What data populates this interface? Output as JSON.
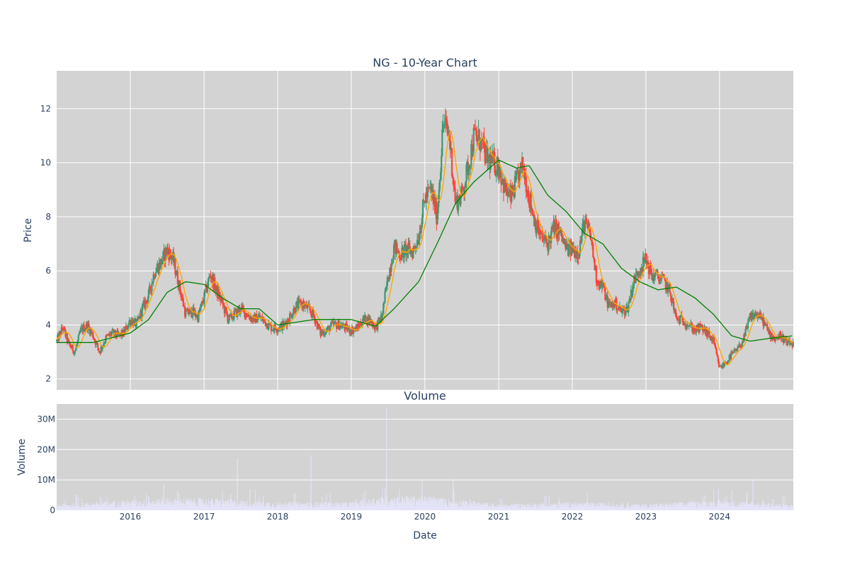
{
  "chart_data": [
    {
      "type": "candlestick",
      "title": "NG - 10-Year Chart",
      "ylabel": "Price",
      "xlabel": "",
      "ylim": [
        1.6,
        13.4
      ],
      "xlim": [
        "2015-01-01",
        "2025-01-01"
      ],
      "y_ticks": [
        2,
        4,
        6,
        8,
        10,
        12
      ],
      "x_ticks": [
        {
          "date": "2016-01-01",
          "label": "2016"
        },
        {
          "date": "2017-01-01",
          "label": "2017"
        },
        {
          "date": "2018-01-01",
          "label": "2018"
        },
        {
          "date": "2019-01-01",
          "label": "2019"
        },
        {
          "date": "2020-01-01",
          "label": "2020"
        },
        {
          "date": "2021-01-01",
          "label": "2021"
        },
        {
          "date": "2022-01-01",
          "label": "2022"
        },
        {
          "date": "2023-01-01",
          "label": "2023"
        },
        {
          "date": "2024-01-01",
          "label": "2024"
        }
      ],
      "grid": true,
      "colors": {
        "up": "#3d9970",
        "down": "#ff4136",
        "ma_short": "#ffa500",
        "ma_long": "#008000",
        "plot_bg": "#d3d3d3"
      },
      "price_path": [
        [
          "2015-01-01",
          3.4
        ],
        [
          "2015-02-01",
          3.9
        ],
        [
          "2015-03-01",
          3.3
        ],
        [
          "2015-04-01",
          3.0
        ],
        [
          "2015-05-01",
          3.8
        ],
        [
          "2015-06-01",
          4.0
        ],
        [
          "2015-07-01",
          3.6
        ],
        [
          "2015-08-01",
          3.0
        ],
        [
          "2015-09-01",
          3.5
        ],
        [
          "2015-10-01",
          3.7
        ],
        [
          "2015-11-01",
          3.6
        ],
        [
          "2015-12-01",
          3.7
        ],
        [
          "2016-01-01",
          4.2
        ],
        [
          "2016-02-01",
          4.0
        ],
        [
          "2016-03-01",
          4.6
        ],
        [
          "2016-04-01",
          5.1
        ],
        [
          "2016-05-01",
          6.0
        ],
        [
          "2016-06-01",
          6.3
        ],
        [
          "2016-07-01",
          6.8
        ],
        [
          "2016-08-01",
          6.4
        ],
        [
          "2016-09-01",
          5.4
        ],
        [
          "2016-10-01",
          4.4
        ],
        [
          "2016-11-01",
          4.5
        ],
        [
          "2016-12-01",
          4.3
        ],
        [
          "2017-01-01",
          5.0
        ],
        [
          "2017-02-01",
          5.9
        ],
        [
          "2017-03-01",
          5.3
        ],
        [
          "2017-04-01",
          4.8
        ],
        [
          "2017-05-01",
          4.2
        ],
        [
          "2017-06-01",
          4.4
        ],
        [
          "2017-07-01",
          4.6
        ],
        [
          "2017-08-01",
          4.4
        ],
        [
          "2017-09-01",
          4.2
        ],
        [
          "2017-10-01",
          4.3
        ],
        [
          "2017-11-01",
          4.1
        ],
        [
          "2017-12-01",
          3.9
        ],
        [
          "2018-01-01",
          3.9
        ],
        [
          "2018-02-01",
          4.0
        ],
        [
          "2018-03-01",
          4.3
        ],
        [
          "2018-04-01",
          4.7
        ],
        [
          "2018-05-01",
          4.8
        ],
        [
          "2018-06-01",
          4.6
        ],
        [
          "2018-07-01",
          4.3
        ],
        [
          "2018-08-01",
          3.7
        ],
        [
          "2018-09-01",
          3.8
        ],
        [
          "2018-10-01",
          4.0
        ],
        [
          "2018-11-01",
          4.0
        ],
        [
          "2018-12-01",
          3.9
        ],
        [
          "2019-01-01",
          3.8
        ],
        [
          "2019-02-01",
          3.9
        ],
        [
          "2019-03-01",
          4.2
        ],
        [
          "2019-04-01",
          4.2
        ],
        [
          "2019-05-01",
          3.9
        ],
        [
          "2019-06-01",
          4.3
        ],
        [
          "2019-07-01",
          5.7
        ],
        [
          "2019-08-01",
          6.9
        ],
        [
          "2019-09-01",
          6.6
        ],
        [
          "2019-10-01",
          6.8
        ],
        [
          "2019-11-01",
          6.7
        ],
        [
          "2019-12-01",
          7.3
        ],
        [
          "2020-01-01",
          8.7
        ],
        [
          "2020-02-01",
          9.0
        ],
        [
          "2020-03-01",
          8.0
        ],
        [
          "2020-04-01",
          11.5
        ],
        [
          "2020-05-01",
          11.0
        ],
        [
          "2020-06-01",
          8.5
        ],
        [
          "2020-07-01",
          8.8
        ],
        [
          "2020-08-01",
          9.8
        ],
        [
          "2020-09-01",
          11.0
        ],
        [
          "2020-10-01",
          10.8
        ],
        [
          "2020-11-01",
          10.2
        ],
        [
          "2020-12-01",
          10.0
        ],
        [
          "2021-01-01",
          9.9
        ],
        [
          "2021-02-01",
          9.0
        ],
        [
          "2021-03-01",
          8.7
        ],
        [
          "2021-04-01",
          9.3
        ],
        [
          "2021-05-01",
          9.9
        ],
        [
          "2021-06-01",
          8.7
        ],
        [
          "2021-07-01",
          7.8
        ],
        [
          "2021-08-01",
          7.2
        ],
        [
          "2021-09-01",
          7.0
        ],
        [
          "2021-10-01",
          7.6
        ],
        [
          "2021-11-01",
          7.4
        ],
        [
          "2021-12-01",
          6.8
        ],
        [
          "2022-01-01",
          6.8
        ],
        [
          "2022-02-01",
          6.7
        ],
        [
          "2022-03-01",
          7.8
        ],
        [
          "2022-04-01",
          7.3
        ],
        [
          "2022-05-01",
          5.7
        ],
        [
          "2022-06-01",
          5.4
        ],
        [
          "2022-07-01",
          4.7
        ],
        [
          "2022-08-01",
          4.8
        ],
        [
          "2022-09-01",
          4.5
        ],
        [
          "2022-10-01",
          4.6
        ],
        [
          "2022-11-01",
          5.6
        ],
        [
          "2022-12-01",
          6.1
        ],
        [
          "2023-01-01",
          6.4
        ],
        [
          "2023-02-01",
          5.8
        ],
        [
          "2023-03-01",
          5.8
        ],
        [
          "2023-04-01",
          5.6
        ],
        [
          "2023-05-01",
          5.2
        ],
        [
          "2023-06-01",
          4.2
        ],
        [
          "2023-07-01",
          4.2
        ],
        [
          "2023-08-01",
          4.0
        ],
        [
          "2023-09-01",
          3.8
        ],
        [
          "2023-10-01",
          3.9
        ],
        [
          "2023-11-01",
          3.7
        ],
        [
          "2023-12-01",
          3.4
        ],
        [
          "2024-01-01",
          2.4
        ],
        [
          "2024-02-01",
          2.6
        ],
        [
          "2024-03-01",
          2.9
        ],
        [
          "2024-04-01",
          3.1
        ],
        [
          "2024-05-01",
          3.5
        ],
        [
          "2024-06-01",
          4.3
        ],
        [
          "2024-07-01",
          4.4
        ],
        [
          "2024-08-01",
          4.2
        ],
        [
          "2024-09-01",
          3.7
        ],
        [
          "2024-10-01",
          3.5
        ],
        [
          "2024-11-01",
          3.6
        ],
        [
          "2024-12-01",
          3.3
        ]
      ],
      "ma_long": [
        [
          "2015-01-01",
          3.35
        ],
        [
          "2015-07-01",
          3.35
        ],
        [
          "2016-01-01",
          3.7
        ],
        [
          "2016-04-01",
          4.2
        ],
        [
          "2016-07-01",
          5.2
        ],
        [
          "2016-10-01",
          5.6
        ],
        [
          "2017-01-01",
          5.5
        ],
        [
          "2017-04-01",
          5.0
        ],
        [
          "2017-07-01",
          4.6
        ],
        [
          "2017-10-01",
          4.6
        ],
        [
          "2018-01-01",
          4.0
        ],
        [
          "2018-07-01",
          4.2
        ],
        [
          "2019-01-01",
          4.2
        ],
        [
          "2019-05-01",
          3.95
        ],
        [
          "2019-08-01",
          4.6
        ],
        [
          "2019-12-01",
          5.6
        ],
        [
          "2020-03-01",
          7.0
        ],
        [
          "2020-06-01",
          8.5
        ],
        [
          "2020-09-01",
          9.3
        ],
        [
          "2021-01-01",
          10.1
        ],
        [
          "2021-04-01",
          9.8
        ],
        [
          "2021-06-01",
          9.9
        ],
        [
          "2021-09-01",
          8.8
        ],
        [
          "2021-12-01",
          8.2
        ],
        [
          "2022-03-01",
          7.4
        ],
        [
          "2022-06-01",
          7.0
        ],
        [
          "2022-09-01",
          6.1
        ],
        [
          "2022-12-01",
          5.6
        ],
        [
          "2023-03-01",
          5.3
        ],
        [
          "2023-06-01",
          5.4
        ],
        [
          "2023-09-01",
          5.0
        ],
        [
          "2023-12-01",
          4.4
        ],
        [
          "2024-03-01",
          3.6
        ],
        [
          "2024-06-01",
          3.4
        ],
        [
          "2024-09-01",
          3.5
        ],
        [
          "2025-01-01",
          3.6
        ]
      ]
    },
    {
      "type": "bar",
      "title": "Volume",
      "ylabel": "Volume",
      "xlabel": "Date",
      "ylim": [
        0,
        35000000
      ],
      "y_ticks": [
        {
          "value": 0,
          "label": "0"
        },
        {
          "value": 10000000,
          "label": "10M"
        },
        {
          "value": 20000000,
          "label": "20M"
        },
        {
          "value": 30000000,
          "label": "30M"
        }
      ],
      "grid": true,
      "colors": {
        "bar": "#e4e4f8",
        "plot_bg": "#d3d3d3"
      },
      "baseline_by_year": [
        [
          "2015-01-01",
          1500000
        ],
        [
          "2016-01-01",
          2500000
        ],
        [
          "2017-01-01",
          3000000
        ],
        [
          "2018-01-01",
          2000000
        ],
        [
          "2019-01-01",
          2000000
        ],
        [
          "2019-07-01",
          3500000
        ],
        [
          "2020-01-01",
          3500000
        ],
        [
          "2021-01-01",
          1500000
        ],
        [
          "2022-01-01",
          2000000
        ],
        [
          "2023-01-01",
          1500000
        ],
        [
          "2024-01-01",
          2500000
        ],
        [
          "2025-01-01",
          1500000
        ]
      ],
      "spikes": [
        [
          "2016-06-15",
          8500000
        ],
        [
          "2017-06-15",
          17000000
        ],
        [
          "2018-06-15",
          18000000
        ],
        [
          "2019-06-25",
          33500000
        ],
        [
          "2020-05-20",
          10500000
        ],
        [
          "2024-06-15",
          10500000
        ]
      ]
    }
  ]
}
